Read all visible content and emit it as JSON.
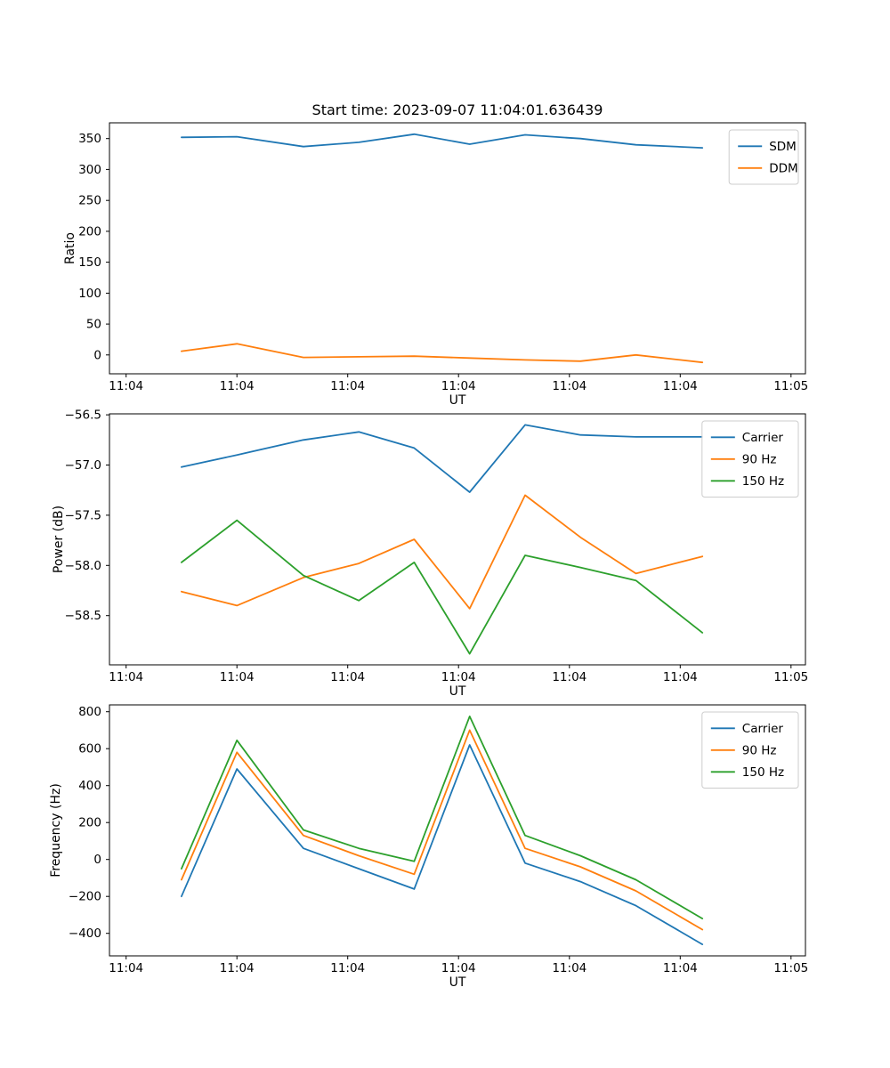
{
  "chart_data": [
    {
      "type": "line",
      "title": "Start time: 2023-09-07 11:04:01.636439",
      "xlabel": "UT",
      "ylabel": "Ratio",
      "x_tick_labels": [
        "11:04",
        "11:04",
        "11:04",
        "11:04",
        "11:04",
        "11:04",
        "11:05"
      ],
      "x_tick_seconds": [
        0,
        10,
        20,
        30,
        40,
        50,
        60
      ],
      "xlim_seconds": [
        -1.5,
        61.3
      ],
      "y_tick_labels": [
        "0",
        "50",
        "100",
        "150",
        "200",
        "250",
        "300",
        "350"
      ],
      "y_ticks": [
        0,
        50,
        100,
        150,
        200,
        250,
        300,
        350
      ],
      "ylim": [
        -30.5,
        375.5
      ],
      "x_seconds": [
        5,
        10,
        16,
        21,
        26,
        31,
        36,
        41,
        46,
        52
      ],
      "grid": false,
      "legend_position": "upper right",
      "series": [
        {
          "name": "SDM",
          "color": "#1f77b4",
          "values": [
            352,
            353,
            337,
            344,
            357,
            341,
            356,
            350,
            340,
            335
          ]
        },
        {
          "name": "DDM",
          "color": "#ff7f0e",
          "values": [
            6,
            18,
            -4,
            -3,
            -2,
            -5,
            -8,
            -10,
            0,
            -12
          ]
        }
      ]
    },
    {
      "type": "line",
      "title": "",
      "xlabel": "UT",
      "ylabel": "Power (dB)",
      "x_tick_labels": [
        "11:04",
        "11:04",
        "11:04",
        "11:04",
        "11:04",
        "11:04",
        "11:05"
      ],
      "x_tick_seconds": [
        0,
        10,
        20,
        30,
        40,
        50,
        60
      ],
      "xlim_seconds": [
        -1.5,
        61.3
      ],
      "y_tick_labels": [
        "−58.5",
        "−58.0",
        "−57.5",
        "−57.0",
        "−56.5"
      ],
      "y_ticks": [
        -58.5,
        -58.0,
        -57.5,
        -57.0,
        -56.5
      ],
      "ylim": [
        -58.99,
        -56.49
      ],
      "x_seconds": [
        5,
        10,
        16,
        21,
        26,
        31,
        36,
        41,
        46,
        52
      ],
      "grid": false,
      "legend_position": "upper right",
      "series": [
        {
          "name": "Carrier",
          "color": "#1f77b4",
          "values": [
            -57.02,
            -56.9,
            -56.75,
            -56.67,
            -56.83,
            -57.27,
            -56.6,
            -56.7,
            -56.72,
            -56.72
          ]
        },
        {
          "name": "90 Hz",
          "color": "#ff7f0e",
          "values": [
            -58.26,
            -58.4,
            -58.12,
            -57.98,
            -57.74,
            -58.43,
            -57.3,
            -57.72,
            -58.08,
            -57.91
          ]
        },
        {
          "name": "150 Hz",
          "color": "#2ca02c",
          "values": [
            -57.97,
            -57.55,
            -58.1,
            -58.35,
            -57.97,
            -58.88,
            -57.9,
            -58.02,
            -58.15,
            -58.67
          ]
        }
      ]
    },
    {
      "type": "line",
      "title": "",
      "xlabel": "UT",
      "ylabel": "Frequency (Hz)",
      "x_tick_labels": [
        "11:04",
        "11:04",
        "11:04",
        "11:04",
        "11:04",
        "11:04",
        "11:05"
      ],
      "x_tick_seconds": [
        0,
        10,
        20,
        30,
        40,
        50,
        60
      ],
      "xlim_seconds": [
        -1.5,
        61.3
      ],
      "y_tick_labels": [
        "−400",
        "−200",
        "0",
        "200",
        "400",
        "600",
        "800"
      ],
      "y_ticks": [
        -400,
        -200,
        0,
        200,
        400,
        600,
        800
      ],
      "ylim": [
        -522,
        837
      ],
      "x_seconds": [
        5,
        10,
        16,
        21,
        26,
        31,
        36,
        41,
        46,
        52
      ],
      "grid": false,
      "legend_position": "upper right",
      "series": [
        {
          "name": "Carrier",
          "color": "#1f77b4",
          "values": [
            -200,
            490,
            60,
            -50,
            -160,
            620,
            -20,
            -120,
            -250,
            -460
          ]
        },
        {
          "name": "90 Hz",
          "color": "#ff7f0e",
          "values": [
            -110,
            580,
            130,
            20,
            -80,
            700,
            60,
            -40,
            -170,
            -380
          ]
        },
        {
          "name": "150 Hz",
          "color": "#2ca02c",
          "values": [
            -50,
            645,
            160,
            60,
            -10,
            775,
            130,
            20,
            -110,
            -320
          ]
        }
      ]
    }
  ],
  "colors": {
    "axes": "#000000",
    "legend_border": "#cccccc",
    "background": "#ffffff"
  }
}
